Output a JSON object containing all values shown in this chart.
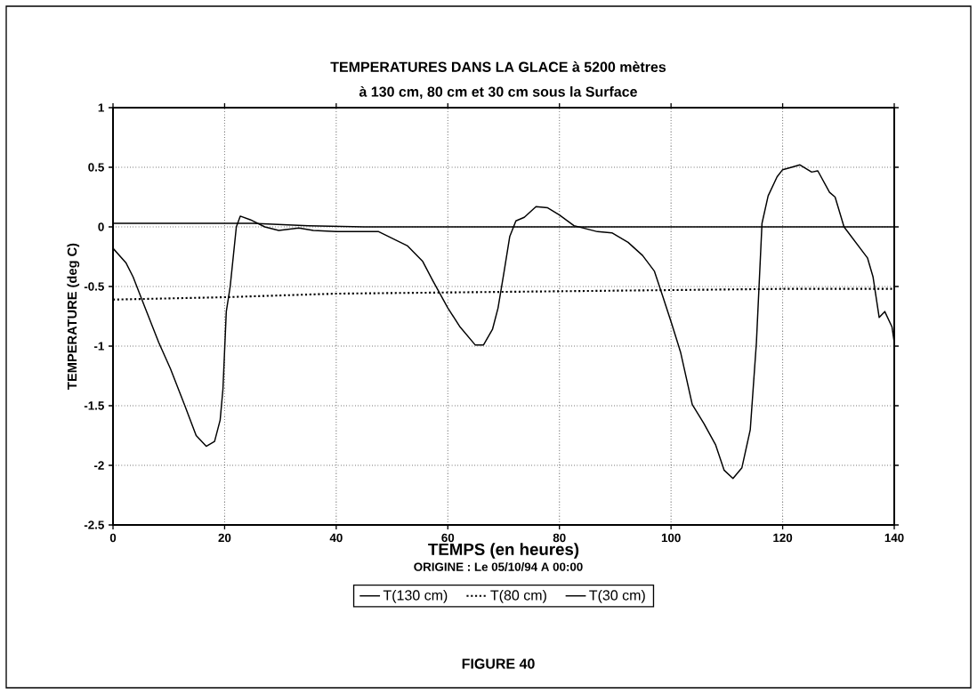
{
  "chart_data": {
    "type": "line",
    "title": "TEMPERATURES DANS LA GLACE à 5200 mètres",
    "subtitle": "à 130 cm, 80 cm et 30 cm sous la Surface",
    "xlabel": "TEMPS (en heures)",
    "ylabel": "TEMPERATURE (deg C)",
    "annotations": [
      "ORIGINE : Le 05/10/94 A 00:00",
      "FIGURE 40"
    ],
    "xlim": [
      0,
      140
    ],
    "xticks": [
      0,
      20,
      40,
      60,
      80,
      100,
      120,
      140
    ],
    "ylim": [
      -2.5,
      1
    ],
    "yticks": [
      -2.5,
      -2,
      -1.5,
      -1,
      -0.5,
      0,
      0.5,
      1
    ],
    "grid": true,
    "legend": "bottom",
    "marker": "none",
    "series": [
      {
        "name": "T(130 cm)",
        "color": "#000000",
        "line_style": "solid",
        "x": [
          0,
          25,
          35,
          45,
          140
        ],
        "values": [
          0.03,
          0.03,
          0.01,
          0.0,
          0.0
        ]
      },
      {
        "name": "T(80 cm)",
        "color": "#000000",
        "line_style": "dotted",
        "x": [
          0,
          20,
          40,
          60,
          80,
          100,
          120,
          140
        ],
        "values": [
          -0.61,
          -0.59,
          -0.56,
          -0.55,
          -0.54,
          -0.53,
          -0.52,
          -0.52
        ]
      },
      {
        "name": "T(30 cm)",
        "color": "#000000",
        "line_style": "solid",
        "x": [
          0,
          2.3,
          3.6,
          5.6,
          8.2,
          10.3,
          12.8,
          14.9,
          16.7,
          18.2,
          19.2,
          19.7,
          20.3,
          21.0,
          22.1,
          22.8,
          24.6,
          27.2,
          29.7,
          33.3,
          35.9,
          40,
          47.6,
          52.8,
          55.5,
          57.3,
          60,
          62.2,
          64.9,
          66.4,
          68,
          69,
          70.1,
          71.1,
          72.2,
          73.7,
          75.8,
          77.9,
          80,
          82.6,
          86.8,
          89.4,
          92.3,
          94.9,
          97,
          98.5,
          100.1,
          101.7,
          103.8,
          105.9,
          108,
          109.5,
          111.1,
          112.7,
          114.2,
          115.3,
          116.3,
          117.4,
          119,
          120,
          121.6,
          123.1,
          125.2,
          126.3,
          128.4,
          129.4,
          131,
          133.1,
          135.2,
          136.2,
          137.3,
          138.3,
          139.6,
          140
        ],
        "values": [
          -0.18,
          -0.3,
          -0.42,
          -0.66,
          -0.97,
          -1.19,
          -1.49,
          -1.75,
          -1.84,
          -1.8,
          -1.62,
          -1.36,
          -0.71,
          -0.5,
          0.0,
          0.09,
          0.06,
          0.0,
          -0.03,
          -0.01,
          -0.03,
          -0.04,
          -0.04,
          -0.16,
          -0.29,
          -0.45,
          -0.68,
          -0.84,
          -0.99,
          -0.99,
          -0.86,
          -0.68,
          -0.37,
          -0.08,
          0.05,
          0.08,
          0.17,
          0.16,
          0.1,
          0.01,
          -0.04,
          -0.05,
          -0.13,
          -0.24,
          -0.37,
          -0.58,
          -0.81,
          -1.05,
          -1.49,
          -1.65,
          -1.83,
          -2.04,
          -2.11,
          -2.02,
          -1.7,
          -0.97,
          0.03,
          0.26,
          0.42,
          0.48,
          0.5,
          0.52,
          0.46,
          0.47,
          0.29,
          0.25,
          0.0,
          -0.13,
          -0.26,
          -0.42,
          -0.76,
          -0.71,
          -0.84,
          -0.97
        ]
      }
    ]
  }
}
